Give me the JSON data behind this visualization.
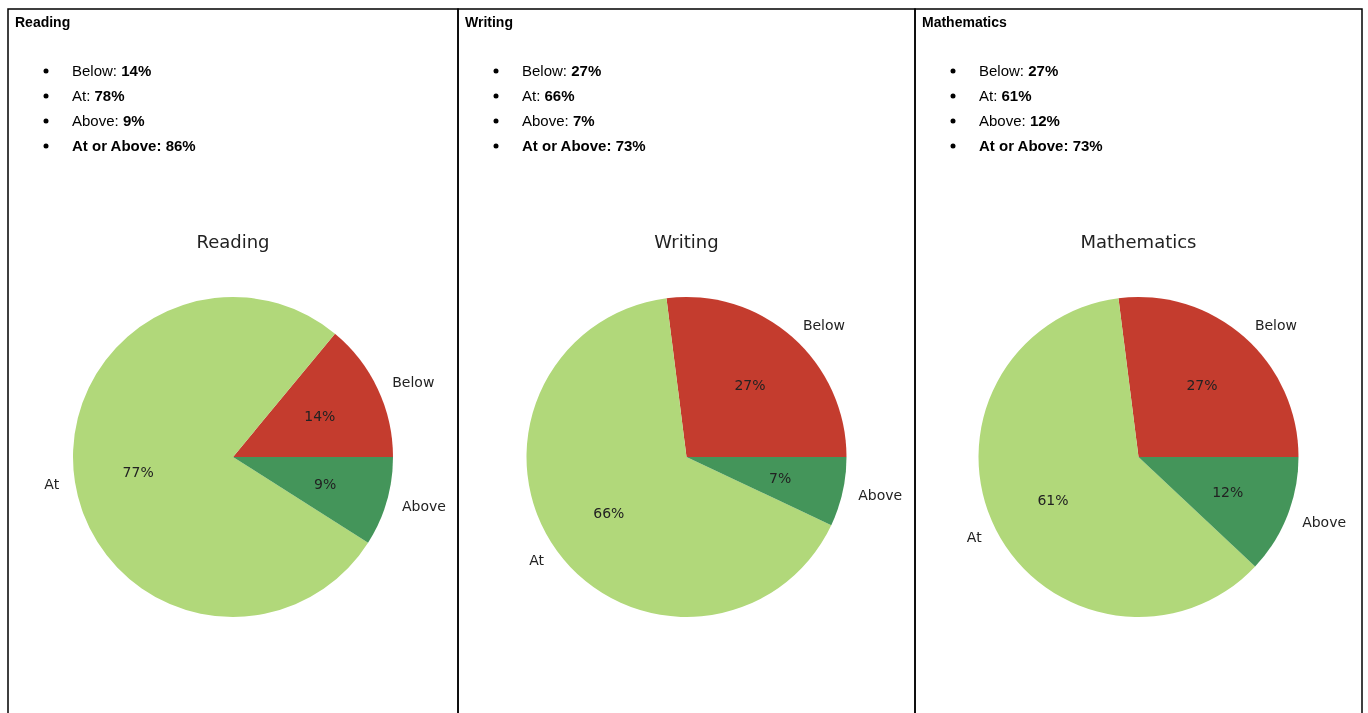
{
  "chart_data": [
    {
      "type": "pie",
      "title": "Reading",
      "categories": [
        "Below",
        "At",
        "Above"
      ],
      "values": [
        14,
        77,
        9
      ],
      "colors": [
        "#c43c2e",
        "#b1d87a",
        "#44955a"
      ],
      "value_labels": [
        "14%",
        "77%",
        "9%"
      ],
      "annotations": [
        "Reading",
        "Below: 14%",
        "At: 78%",
        "Above: 9%",
        "At or Above: 86%"
      ]
    },
    {
      "type": "pie",
      "title": "Writing",
      "categories": [
        "Below",
        "At",
        "Above"
      ],
      "values": [
        27,
        66,
        7
      ],
      "colors": [
        "#c43c2e",
        "#b1d87a",
        "#44955a"
      ],
      "value_labels": [
        "27%",
        "66%",
        "7%"
      ],
      "annotations": [
        "Writing",
        "Below: 27%",
        "At: 66%",
        "Above: 7%",
        "At or Above: 73%"
      ]
    },
    {
      "type": "pie",
      "title": "Mathematics",
      "categories": [
        "Below",
        "At",
        "Above"
      ],
      "values": [
        27,
        61,
        12
      ],
      "colors": [
        "#c43c2e",
        "#b1d87a",
        "#44955a"
      ],
      "value_labels": [
        "27%",
        "61%",
        "12%"
      ],
      "annotations": [
        "Mathematics",
        "Below: 27%",
        "At: 61%",
        "Above: 12%",
        "At or Above: 73%"
      ]
    }
  ]
}
